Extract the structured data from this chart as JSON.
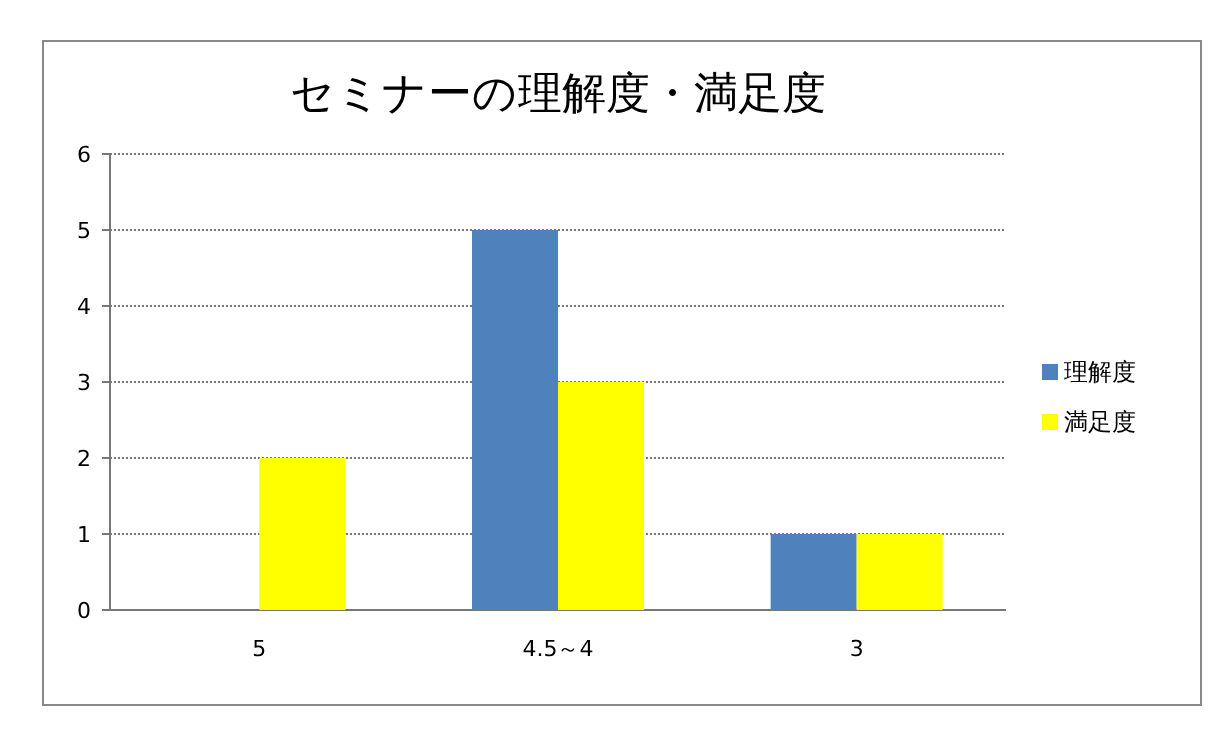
{
  "chart_data": {
    "type": "bar",
    "title": "セミナーの理解度・満足度",
    "categories": [
      "5",
      "4.5～4",
      "3"
    ],
    "series": [
      {
        "name": "理解度",
        "color": "#4f81bd",
        "values": [
          0,
          5,
          1
        ]
      },
      {
        "name": "満足度",
        "color": "#ffff00",
        "values": [
          2,
          3,
          1
        ]
      }
    ],
    "ylim": [
      0,
      6
    ],
    "yticks": [
      0,
      1,
      2,
      3,
      4,
      5,
      6
    ],
    "grid": "y",
    "legend": "right"
  }
}
